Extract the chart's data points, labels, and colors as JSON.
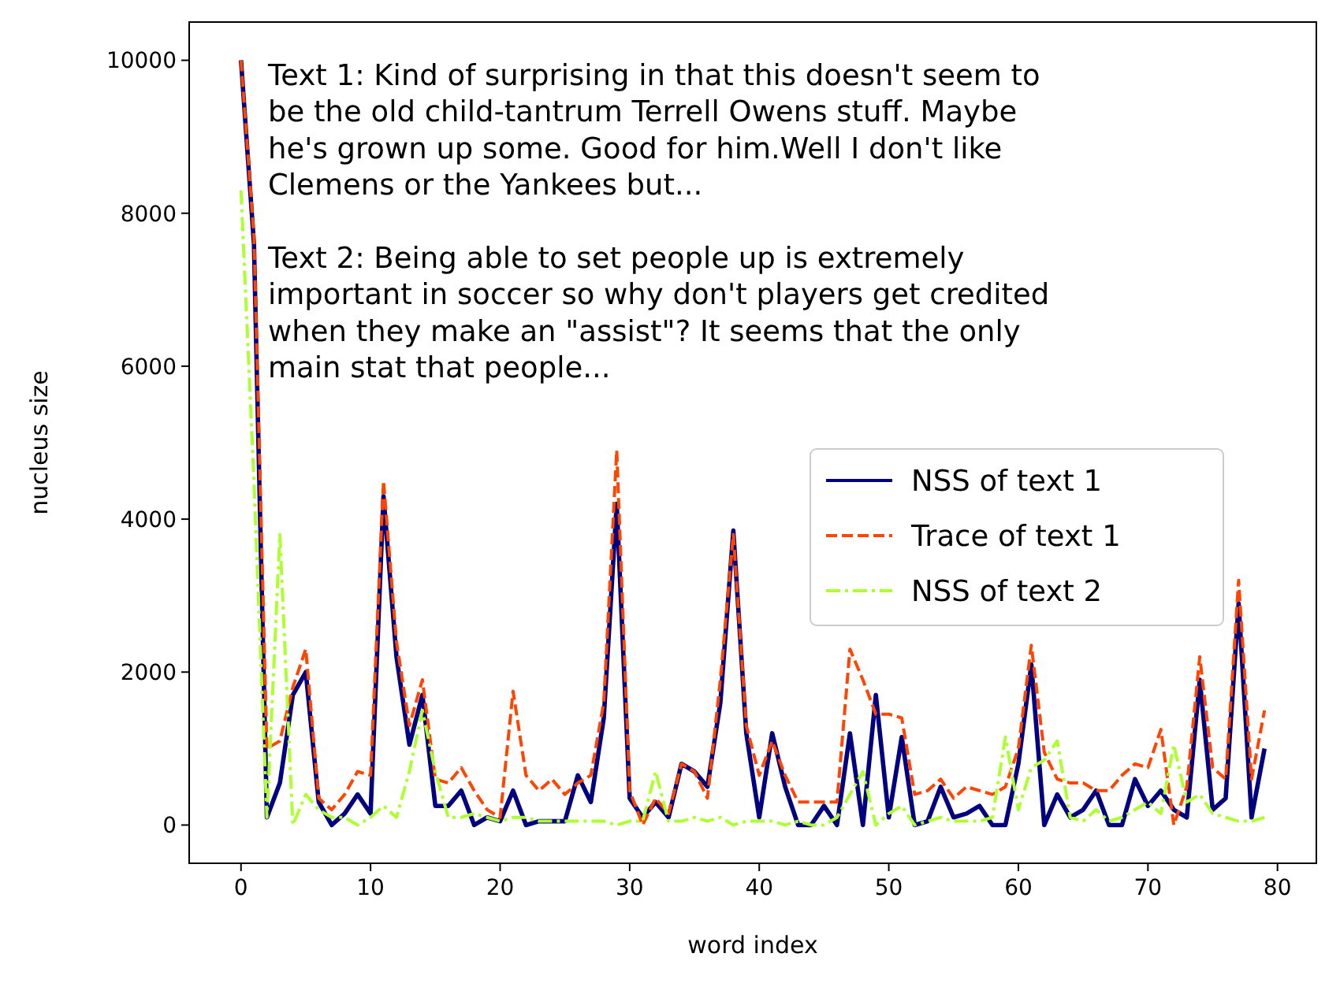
{
  "chart_data": {
    "type": "line",
    "xlabel": "word index",
    "ylabel": "nucleus size",
    "annotations": [
      "Text 1: Kind of surprising in that this doesn't seem to\nbe the old child-tantrum Terrell Owens stuff. Maybe\nhe's grown up some. Good for him.Well I don't like\nClemens or the Yankees but...\n\nText 2: Being able to set people up is extremely\nimportant in soccer so why don't players get credited\nwhen they make an \"assist\"? It seems that the only\nmain stat that people..."
    ],
    "x": [
      0,
      1,
      2,
      3,
      4,
      5,
      6,
      7,
      8,
      9,
      10,
      11,
      12,
      13,
      14,
      15,
      16,
      17,
      18,
      19,
      20,
      21,
      22,
      23,
      24,
      25,
      26,
      27,
      28,
      29,
      30,
      31,
      32,
      33,
      34,
      35,
      36,
      37,
      38,
      39,
      40,
      41,
      42,
      43,
      44,
      45,
      46,
      47,
      48,
      49,
      50,
      51,
      52,
      53,
      54,
      55,
      56,
      57,
      58,
      59,
      60,
      61,
      62,
      63,
      64,
      65,
      66,
      67,
      68,
      69,
      70,
      71,
      72,
      73,
      74,
      75,
      76,
      77,
      78,
      79
    ],
    "series": [
      {
        "name": "NSS of text 1",
        "color": "#000080",
        "line_style": "solid",
        "values": [
          10000,
          7600,
          100,
          550,
          1700,
          2000,
          300,
          0,
          150,
          400,
          150,
          4300,
          2200,
          1050,
          1700,
          250,
          250,
          450,
          0,
          100,
          50,
          450,
          0,
          50,
          50,
          50,
          650,
          300,
          1400,
          4200,
          350,
          100,
          300,
          100,
          800,
          700,
          500,
          1600,
          3850,
          1200,
          100,
          1200,
          500,
          0,
          0,
          250,
          0,
          1200,
          0,
          1700,
          100,
          1150,
          0,
          50,
          500,
          100,
          150,
          250,
          0,
          0,
          800,
          2100,
          0,
          400,
          100,
          200,
          450,
          0,
          0,
          600,
          250,
          450,
          200,
          100,
          1900,
          200,
          350,
          2900,
          100,
          1000
        ]
      },
      {
        "name": "Trace of text 1",
        "color": "#ff4500",
        "line_style": "dashed",
        "values": [
          10000,
          7700,
          1000,
          1100,
          1800,
          2300,
          350,
          200,
          400,
          700,
          650,
          4500,
          2400,
          1300,
          1900,
          600,
          550,
          750,
          450,
          200,
          100,
          1750,
          650,
          450,
          600,
          400,
          550,
          650,
          1600,
          4900,
          450,
          0,
          350,
          150,
          800,
          700,
          350,
          1900,
          3800,
          1300,
          650,
          1100,
          650,
          300,
          300,
          300,
          300,
          2300,
          1900,
          1450,
          1450,
          1400,
          400,
          450,
          600,
          350,
          500,
          450,
          400,
          500,
          1000,
          2350,
          950,
          600,
          550,
          550,
          450,
          450,
          650,
          800,
          750,
          1250,
          0,
          500,
          2200,
          750,
          600,
          3200,
          600,
          1500
        ]
      },
      {
        "name": "NSS of text 2",
        "color": "#adff2f",
        "line_style": "dashdot",
        "values": [
          8300,
          4500,
          100,
          3800,
          0,
          400,
          200,
          100,
          100,
          0,
          100,
          250,
          100,
          700,
          1500,
          700,
          100,
          100,
          150,
          100,
          50,
          100,
          100,
          50,
          50,
          50,
          50,
          50,
          50,
          0,
          50,
          50,
          700,
          50,
          50,
          100,
          50,
          100,
          0,
          50,
          50,
          50,
          0,
          50,
          0,
          0,
          100,
          400,
          700,
          0,
          150,
          250,
          0,
          50,
          100,
          50,
          50,
          50,
          100,
          1150,
          200,
          750,
          850,
          1100,
          100,
          50,
          200,
          50,
          100,
          200,
          300,
          150,
          1050,
          300,
          400,
          150,
          100,
          50,
          50,
          100
        ]
      }
    ],
    "xlim": [
      -4,
      83
    ],
    "ylim": [
      -500,
      10500
    ],
    "xticks": [
      0,
      10,
      20,
      30,
      40,
      50,
      60,
      70,
      80
    ],
    "yticks": [
      0,
      2000,
      4000,
      6000,
      8000,
      10000
    ],
    "legend": "right",
    "grid": false,
    "marker": "none"
  }
}
